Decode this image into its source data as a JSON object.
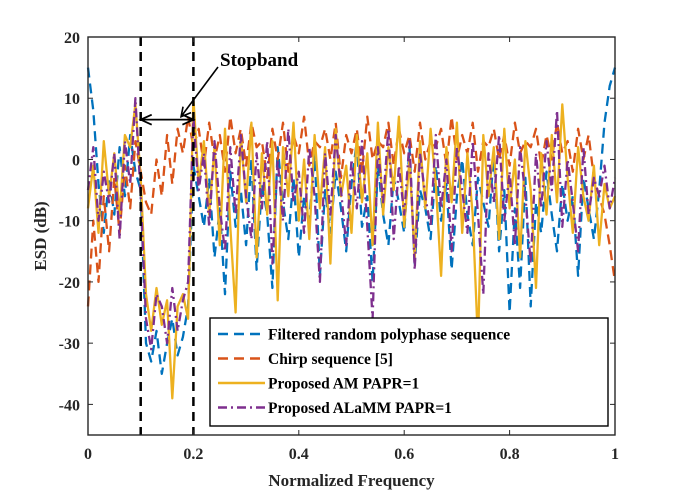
{
  "chart_data": {
    "type": "line",
    "title": "",
    "xlabel": "Normalized Frequency",
    "ylabel": "ESD (dB)",
    "xlim": [
      0,
      1
    ],
    "ylim": [
      -45,
      20
    ],
    "xticks": [
      "0",
      "0.2",
      "0.4",
      "0.6",
      "0.8",
      "1"
    ],
    "xtick_values": [
      0,
      0.2,
      0.4,
      0.6,
      0.8,
      1
    ],
    "yticks": [
      "-40",
      "-30",
      "-20",
      "-10",
      "0",
      "10",
      "20"
    ],
    "ytick_values": [
      -40,
      -30,
      -20,
      -10,
      0,
      10,
      20
    ],
    "stopband": {
      "label": "Stopband",
      "start": 0.1,
      "end": 0.2,
      "arrow_level": 6.5
    },
    "legend_position": "bottom-right",
    "series": [
      {
        "name": "Filtered random polyphase sequence",
        "color": "#0072BD",
        "style": "dashed",
        "x": [
          0,
          0.01,
          0.02,
          0.03,
          0.04,
          0.05,
          0.06,
          0.07,
          0.08,
          0.09,
          0.1,
          0.11,
          0.12,
          0.13,
          0.14,
          0.15,
          0.16,
          0.17,
          0.18,
          0.19,
          0.2,
          0.21,
          0.22,
          0.23,
          0.24,
          0.25,
          0.26,
          0.27,
          0.28,
          0.29,
          0.3,
          0.31,
          0.32,
          0.33,
          0.34,
          0.35,
          0.36,
          0.37,
          0.38,
          0.39,
          0.4,
          0.41,
          0.42,
          0.43,
          0.44,
          0.45,
          0.46,
          0.47,
          0.48,
          0.49,
          0.5,
          0.51,
          0.52,
          0.53,
          0.54,
          0.55,
          0.56,
          0.57,
          0.58,
          0.59,
          0.6,
          0.61,
          0.62,
          0.63,
          0.64,
          0.65,
          0.66,
          0.67,
          0.68,
          0.69,
          0.7,
          0.71,
          0.72,
          0.73,
          0.74,
          0.75,
          0.76,
          0.77,
          0.78,
          0.79,
          0.8,
          0.81,
          0.82,
          0.83,
          0.84,
          0.85,
          0.86,
          0.87,
          0.88,
          0.89,
          0.9,
          0.91,
          0.92,
          0.93,
          0.94,
          0.95,
          0.96,
          0.97,
          0.98,
          0.99,
          1.0
        ],
        "values": [
          15,
          8,
          -4,
          -12,
          -3,
          -9,
          2,
          -6,
          4,
          -2,
          -5,
          -30,
          -33,
          -28,
          -35,
          -30,
          -26,
          -32,
          -29,
          -24,
          -1,
          -6,
          -11,
          -3,
          -16,
          -8,
          -22,
          -2,
          -11,
          -5,
          -14,
          0,
          -18,
          -4,
          -9,
          -21,
          2,
          -7,
          -13,
          -3,
          -16,
          -6,
          -10,
          1,
          -19,
          -5,
          -12,
          -2,
          -8,
          -15,
          -4,
          3,
          -11,
          -6,
          -20,
          -1,
          -9,
          -14,
          -3,
          -7,
          -12,
          2,
          -17,
          -5,
          -8,
          -13,
          -1,
          -10,
          -4,
          -18,
          -6,
          0,
          -9,
          -14,
          -3,
          -7,
          -11,
          1,
          -15,
          -5,
          -25,
          -8,
          -21,
          -3,
          -24,
          -7,
          -12,
          -2,
          -9,
          -15,
          -4,
          -10,
          -6,
          -19,
          -3,
          -8,
          -13,
          -5,
          6,
          12,
          15
        ]
      },
      {
        "name": "Chirp sequence [5]",
        "color": "#D95319",
        "style": "dashed",
        "x": [
          0,
          0.01,
          0.02,
          0.03,
          0.04,
          0.05,
          0.06,
          0.07,
          0.08,
          0.09,
          0.1,
          0.11,
          0.12,
          0.13,
          0.14,
          0.15,
          0.16,
          0.17,
          0.18,
          0.19,
          0.2,
          0.21,
          0.22,
          0.23,
          0.24,
          0.25,
          0.26,
          0.27,
          0.28,
          0.29,
          0.3,
          0.31,
          0.32,
          0.33,
          0.34,
          0.35,
          0.36,
          0.37,
          0.38,
          0.39,
          0.4,
          0.41,
          0.42,
          0.43,
          0.44,
          0.45,
          0.46,
          0.47,
          0.48,
          0.49,
          0.5,
          0.51,
          0.52,
          0.53,
          0.54,
          0.55,
          0.56,
          0.57,
          0.58,
          0.59,
          0.6,
          0.61,
          0.62,
          0.63,
          0.64,
          0.65,
          0.66,
          0.67,
          0.68,
          0.69,
          0.7,
          0.71,
          0.72,
          0.73,
          0.74,
          0.75,
          0.76,
          0.77,
          0.78,
          0.79,
          0.8,
          0.81,
          0.82,
          0.83,
          0.84,
          0.85,
          0.86,
          0.87,
          0.88,
          0.89,
          0.9,
          0.91,
          0.92,
          0.93,
          0.94,
          0.95,
          0.96,
          0.97,
          0.98,
          0.99,
          1.0
        ],
        "values": [
          -24,
          -10,
          -20,
          -6,
          -15,
          -3,
          -12,
          -1,
          -8,
          3,
          -2,
          -7,
          -9,
          0,
          -6,
          4,
          -4,
          5,
          1,
          7,
          2,
          5,
          -1,
          6,
          0,
          4,
          -2,
          7,
          1,
          5,
          -1,
          6,
          2,
          3,
          -3,
          5,
          0,
          6,
          -2,
          4,
          1,
          7,
          -1,
          3,
          2,
          5,
          0,
          6,
          -3,
          4,
          1,
          5,
          -2,
          7,
          0,
          3,
          2,
          6,
          -1,
          5,
          1,
          4,
          -2,
          6,
          0,
          3,
          2,
          5,
          -1,
          7,
          0,
          4,
          1,
          6,
          -2,
          3,
          2,
          5,
          0,
          4,
          -1,
          6,
          1,
          3,
          2,
          5,
          -1,
          4,
          0,
          6,
          1,
          3,
          -2,
          5,
          0,
          4,
          -3,
          -6,
          -9,
          -14,
          -20
        ]
      },
      {
        "name": "Proposed AM PAPR=1",
        "color": "#EDB120",
        "style": "solid",
        "x": [
          0,
          0.01,
          0.02,
          0.03,
          0.04,
          0.05,
          0.06,
          0.07,
          0.08,
          0.09,
          0.1,
          0.11,
          0.12,
          0.13,
          0.14,
          0.15,
          0.16,
          0.17,
          0.18,
          0.19,
          0.2,
          0.21,
          0.22,
          0.23,
          0.24,
          0.25,
          0.26,
          0.27,
          0.28,
          0.29,
          0.3,
          0.31,
          0.32,
          0.33,
          0.34,
          0.35,
          0.36,
          0.37,
          0.38,
          0.39,
          0.4,
          0.41,
          0.42,
          0.43,
          0.44,
          0.45,
          0.46,
          0.47,
          0.48,
          0.49,
          0.5,
          0.51,
          0.52,
          0.53,
          0.54,
          0.55,
          0.56,
          0.57,
          0.58,
          0.59,
          0.6,
          0.61,
          0.62,
          0.63,
          0.64,
          0.65,
          0.66,
          0.67,
          0.68,
          0.69,
          0.7,
          0.71,
          0.72,
          0.73,
          0.74,
          0.75,
          0.76,
          0.77,
          0.78,
          0.79,
          0.8,
          0.81,
          0.82,
          0.83,
          0.84,
          0.85,
          0.86,
          0.87,
          0.88,
          0.89,
          0.9,
          0.91,
          0.92,
          0.93,
          0.94,
          0.95,
          0.96,
          0.97,
          0.98,
          0.99,
          1.0
        ],
        "values": [
          -8,
          -1,
          -12,
          3,
          -6,
          1,
          -9,
          4,
          2,
          9,
          -3,
          -22,
          -28,
          -21,
          -27,
          -23,
          -39,
          -24,
          -22,
          -26,
          10,
          -4,
          3,
          -9,
          2,
          -14,
          5,
          -11,
          -25,
          4,
          -7,
          6,
          -16,
          1,
          -9,
          3,
          -23,
          2,
          -6,
          6,
          -10,
          0,
          -13,
          4,
          -8,
          2,
          -17,
          5,
          -6,
          -1,
          -12,
          4,
          -7,
          1,
          -14,
          6,
          -9,
          2,
          -5,
          7,
          -11,
          0,
          -16,
          3,
          -8,
          5,
          -4,
          -19,
          2,
          -7,
          6,
          -12,
          1,
          -9,
          -30,
          4,
          -6,
          2,
          -13,
          5,
          -8,
          0,
          -16,
          3,
          -5,
          -21,
          1,
          -9,
          4,
          -7,
          9,
          -3,
          -12,
          2,
          -6,
          -10,
          -1,
          -14,
          -4,
          -8,
          -6
        ]
      },
      {
        "name": "Proposed ALaMM PAPR=1",
        "color": "#7E2F8E",
        "style": "dashdot",
        "x": [
          0,
          0.01,
          0.02,
          0.03,
          0.04,
          0.05,
          0.06,
          0.07,
          0.08,
          0.09,
          0.1,
          0.11,
          0.12,
          0.13,
          0.14,
          0.15,
          0.16,
          0.17,
          0.18,
          0.19,
          0.2,
          0.21,
          0.22,
          0.23,
          0.24,
          0.25,
          0.26,
          0.27,
          0.28,
          0.29,
          0.3,
          0.31,
          0.32,
          0.33,
          0.34,
          0.35,
          0.36,
          0.37,
          0.38,
          0.39,
          0.4,
          0.41,
          0.42,
          0.43,
          0.44,
          0.45,
          0.46,
          0.47,
          0.48,
          0.49,
          0.5,
          0.51,
          0.52,
          0.53,
          0.54,
          0.55,
          0.56,
          0.57,
          0.58,
          0.59,
          0.6,
          0.61,
          0.62,
          0.63,
          0.64,
          0.65,
          0.66,
          0.67,
          0.68,
          0.69,
          0.7,
          0.71,
          0.72,
          0.73,
          0.74,
          0.75,
          0.76,
          0.77,
          0.78,
          0.79,
          0.8,
          0.81,
          0.82,
          0.83,
          0.84,
          0.85,
          0.86,
          0.87,
          0.88,
          0.89,
          0.9,
          0.91,
          0.92,
          0.93,
          0.94,
          0.95,
          0.96,
          0.97,
          0.98,
          0.99,
          1.0
        ],
        "values": [
          -5,
          2,
          -10,
          -2,
          -7,
          1,
          -13,
          3,
          -4,
          10,
          -6,
          -26,
          -31,
          -22,
          -24,
          -30,
          -21,
          -28,
          -23,
          -20,
          7,
          -5,
          1,
          -11,
          3,
          -8,
          -15,
          2,
          -9,
          4,
          -6,
          -13,
          1,
          -8,
          3,
          -17,
          0,
          -10,
          5,
          -7,
          -2,
          -12,
          2,
          -6,
          -20,
          1,
          -9,
          4,
          -5,
          -14,
          0,
          -8,
          3,
          -11,
          -26,
          2,
          -7,
          5,
          -13,
          -1,
          -9,
          3,
          -18,
          1,
          -6,
          -11,
          4,
          -8,
          0,
          -15,
          2,
          -5,
          -12,
          3,
          -9,
          -22,
          1,
          -7,
          4,
          -10,
          -2,
          -14,
          2,
          -6,
          -17,
          1,
          -8,
          3,
          -5,
          8,
          -11,
          0,
          -7,
          -15,
          2,
          -9,
          -3,
          -6,
          -1,
          -8,
          -3
        ]
      }
    ]
  }
}
